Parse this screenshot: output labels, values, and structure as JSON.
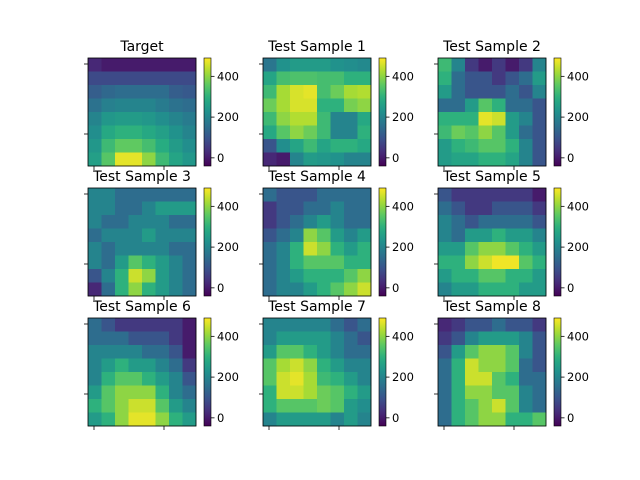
{
  "chart_data": {
    "type": "heatmap",
    "colormap": "viridis",
    "color_range": [
      -40,
      490
    ],
    "colorbar_ticks": [
      "0",
      "200",
      "400"
    ],
    "colorbar_tick_values": [
      0,
      200,
      400
    ],
    "grid_on": false,
    "panels": [
      {
        "title": "Target",
        "values": [
          [
            20,
            0,
            0,
            0,
            0,
            0,
            0,
            0
          ],
          [
            80,
            80,
            80,
            80,
            80,
            80,
            80,
            80
          ],
          [
            120,
            140,
            150,
            150,
            150,
            150,
            120,
            110
          ],
          [
            160,
            190,
            200,
            200,
            200,
            180,
            160,
            150
          ],
          [
            200,
            240,
            250,
            250,
            240,
            220,
            200,
            180
          ],
          [
            220,
            280,
            300,
            300,
            280,
            260,
            230,
            200
          ],
          [
            240,
            320,
            360,
            360,
            330,
            290,
            250,
            220
          ],
          [
            260,
            350,
            470,
            470,
            400,
            320,
            270,
            240
          ]
        ]
      },
      {
        "title": "Test Sample 1",
        "values": [
          [
            170,
            230,
            250,
            250,
            250,
            230,
            220,
            210
          ],
          [
            270,
            330,
            340,
            340,
            330,
            330,
            300,
            300
          ],
          [
            320,
            420,
            460,
            470,
            330,
            370,
            420,
            430
          ],
          [
            370,
            420,
            460,
            460,
            300,
            300,
            380,
            400
          ],
          [
            320,
            400,
            430,
            430,
            320,
            200,
            200,
            280
          ],
          [
            280,
            350,
            400,
            370,
            320,
            200,
            200,
            300
          ],
          [
            100,
            220,
            270,
            320,
            270,
            300,
            300,
            280
          ],
          [
            20,
            0,
            200,
            250,
            240,
            230,
            200,
            200
          ]
        ]
      },
      {
        "title": "Test Sample 2",
        "values": [
          [
            320,
            200,
            50,
            0,
            50,
            0,
            50,
            200
          ],
          [
            300,
            150,
            100,
            100,
            50,
            100,
            150,
            250
          ],
          [
            250,
            150,
            100,
            100,
            100,
            150,
            100,
            200
          ],
          [
            150,
            150,
            250,
            350,
            300,
            150,
            150,
            100
          ],
          [
            300,
            300,
            300,
            470,
            450,
            250,
            200,
            100
          ],
          [
            320,
            370,
            350,
            400,
            350,
            250,
            150,
            100
          ],
          [
            250,
            300,
            320,
            350,
            350,
            300,
            200,
            100
          ],
          [
            250,
            270,
            270,
            300,
            300,
            270,
            200,
            100
          ]
        ]
      },
      {
        "title": "Test Sample 3",
        "values": [
          [
            200,
            200,
            150,
            150,
            150,
            150,
            150,
            150
          ],
          [
            200,
            200,
            150,
            150,
            200,
            250,
            250,
            250
          ],
          [
            200,
            150,
            150,
            200,
            200,
            200,
            150,
            150
          ],
          [
            150,
            200,
            200,
            200,
            250,
            200,
            200,
            200
          ],
          [
            200,
            150,
            200,
            200,
            200,
            200,
            150,
            150
          ],
          [
            200,
            150,
            250,
            350,
            300,
            250,
            200,
            150
          ],
          [
            100,
            200,
            300,
            450,
            400,
            250,
            200,
            150
          ],
          [
            20,
            150,
            300,
            400,
            300,
            250,
            200,
            150
          ]
        ]
      },
      {
        "title": "Test Sample 4",
        "values": [
          [
            150,
            100,
            100,
            100,
            150,
            150,
            150,
            150
          ],
          [
            50,
            100,
            100,
            150,
            150,
            200,
            150,
            150
          ],
          [
            50,
            100,
            150,
            200,
            250,
            200,
            150,
            150
          ],
          [
            100,
            150,
            200,
            400,
            350,
            250,
            200,
            250
          ],
          [
            150,
            200,
            300,
            450,
            400,
            300,
            250,
            300
          ],
          [
            150,
            200,
            300,
            350,
            350,
            350,
            300,
            300
          ],
          [
            150,
            200,
            250,
            300,
            300,
            300,
            350,
            400
          ],
          [
            150,
            200,
            200,
            250,
            300,
            350,
            400,
            450
          ]
        ]
      },
      {
        "title": "Test Sample 5",
        "values": [
          [
            100,
            50,
            50,
            50,
            50,
            50,
            50,
            0
          ],
          [
            150,
            100,
            50,
            50,
            100,
            100,
            100,
            50
          ],
          [
            200,
            150,
            100,
            150,
            150,
            150,
            150,
            100
          ],
          [
            200,
            150,
            250,
            250,
            300,
            250,
            250,
            200
          ],
          [
            250,
            250,
            350,
            400,
            400,
            350,
            300,
            250
          ],
          [
            300,
            300,
            400,
            450,
            480,
            480,
            350,
            300
          ],
          [
            250,
            300,
            300,
            350,
            350,
            300,
            300,
            250
          ],
          [
            200,
            250,
            250,
            300,
            300,
            300,
            250,
            250
          ]
        ]
      },
      {
        "title": "Test Sample 6",
        "values": [
          [
            150,
            100,
            50,
            50,
            50,
            50,
            50,
            0
          ],
          [
            150,
            150,
            150,
            100,
            100,
            100,
            50,
            0
          ],
          [
            200,
            200,
            200,
            200,
            150,
            150,
            100,
            0
          ],
          [
            200,
            250,
            300,
            250,
            250,
            200,
            150,
            50
          ],
          [
            200,
            300,
            350,
            350,
            300,
            250,
            200,
            100
          ],
          [
            250,
            350,
            400,
            400,
            400,
            300,
            200,
            150
          ],
          [
            300,
            350,
            400,
            450,
            450,
            350,
            250,
            200
          ],
          [
            250,
            300,
            400,
            470,
            470,
            400,
            300,
            250
          ]
        ]
      },
      {
        "title": "Test Sample 7",
        "values": [
          [
            200,
            200,
            200,
            200,
            200,
            150,
            100,
            150
          ],
          [
            200,
            250,
            250,
            250,
            250,
            200,
            150,
            100
          ],
          [
            250,
            350,
            350,
            300,
            250,
            200,
            150,
            150
          ],
          [
            350,
            420,
            450,
            400,
            300,
            250,
            200,
            200
          ],
          [
            350,
            450,
            470,
            420,
            320,
            300,
            250,
            200
          ],
          [
            300,
            450,
            450,
            420,
            370,
            350,
            300,
            250
          ],
          [
            300,
            350,
            350,
            350,
            370,
            350,
            250,
            220
          ],
          [
            200,
            250,
            250,
            250,
            250,
            200,
            250,
            200
          ]
        ]
      },
      {
        "title": "Test Sample 8",
        "values": [
          [
            20,
            50,
            100,
            100,
            150,
            100,
            100,
            50
          ],
          [
            50,
            100,
            200,
            250,
            250,
            250,
            200,
            100
          ],
          [
            100,
            250,
            350,
            400,
            400,
            350,
            200,
            100
          ],
          [
            150,
            300,
            450,
            400,
            400,
            350,
            150,
            100
          ],
          [
            150,
            300,
            450,
            450,
            350,
            300,
            150,
            150
          ],
          [
            150,
            300,
            400,
            400,
            350,
            350,
            200,
            150
          ],
          [
            150,
            300,
            350,
            400,
            450,
            350,
            200,
            150
          ],
          [
            150,
            300,
            350,
            400,
            400,
            300,
            300,
            350
          ]
        ]
      }
    ]
  }
}
